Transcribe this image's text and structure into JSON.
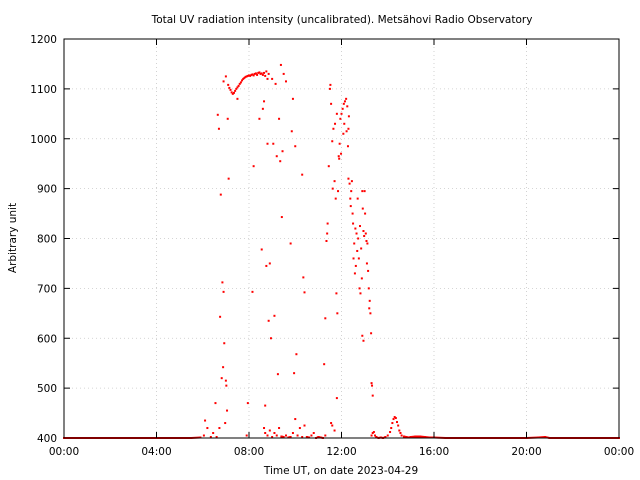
{
  "chart_data": {
    "type": "scatter",
    "title": "Total UV radiation intensity (uncalibrated). Metsähovi Radio Observatory",
    "xlabel": "Time UT, on date 2023-04-29",
    "ylabel": "Arbitrary unit",
    "xlim": [
      0,
      24
    ],
    "ylim": [
      400,
      1200
    ],
    "x_ticks": [
      {
        "value": 0,
        "label": "00:00"
      },
      {
        "value": 4,
        "label": "04:00"
      },
      {
        "value": 8,
        "label": "08:00"
      },
      {
        "value": 12,
        "label": "12:00"
      },
      {
        "value": 16,
        "label": "16:00"
      },
      {
        "value": 20,
        "label": "20:00"
      },
      {
        "value": 24,
        "label": "00:00"
      }
    ],
    "y_ticks": [
      400,
      500,
      600,
      700,
      800,
      900,
      1000,
      1100,
      1200
    ],
    "grid": true,
    "marker_color": "#ff0000",
    "series": [
      {
        "points": [
          [
            0.0,
            400
          ],
          [
            0.5,
            400
          ],
          [
            1.0,
            400
          ],
          [
            1.5,
            400
          ],
          [
            2.0,
            400
          ],
          [
            2.5,
            400
          ],
          [
            3.0,
            400
          ],
          [
            3.5,
            400
          ],
          [
            4.0,
            400
          ],
          [
            4.5,
            400
          ],
          [
            5.0,
            400
          ],
          [
            5.5,
            400
          ],
          [
            5.9,
            401
          ],
          [
            6.05,
            405
          ],
          [
            6.1,
            435
          ],
          [
            6.2,
            420
          ],
          [
            6.35,
            402
          ],
          [
            6.45,
            410
          ],
          [
            6.55,
            470
          ],
          [
            6.6,
            402
          ],
          [
            6.65,
            1048
          ],
          [
            6.7,
            1020
          ],
          [
            6.72,
            420
          ],
          [
            6.78,
            888
          ],
          [
            6.82,
            520
          ],
          [
            6.85,
            712
          ],
          [
            6.88,
            542
          ],
          [
            6.9,
            693
          ],
          [
            6.93,
            590
          ],
          [
            6.97,
            430
          ],
          [
            7.0,
            515
          ],
          [
            7.02,
            505
          ],
          [
            7.05,
            455
          ],
          [
            7.08,
            1040
          ],
          [
            7.12,
            920
          ],
          [
            6.75,
            643
          ],
          [
            6.9,
            1115
          ],
          [
            7.0,
            1125
          ],
          [
            7.1,
            1108
          ],
          [
            7.15,
            1102
          ],
          [
            7.2,
            1098
          ],
          [
            7.25,
            1093
          ],
          [
            7.3,
            1090
          ],
          [
            7.35,
            1092
          ],
          [
            7.4,
            1096
          ],
          [
            7.45,
            1100
          ],
          [
            7.5,
            1103
          ],
          [
            7.55,
            1106
          ],
          [
            7.6,
            1110
          ],
          [
            7.65,
            1113
          ],
          [
            7.7,
            1117
          ],
          [
            7.75,
            1120
          ],
          [
            7.8,
            1122
          ],
          [
            7.85,
            1124
          ],
          [
            7.9,
            1125
          ],
          [
            7.95,
            1126
          ],
          [
            8.0,
            1127
          ],
          [
            8.05,
            1126
          ],
          [
            8.1,
            1128
          ],
          [
            8.15,
            1129
          ],
          [
            8.2,
            1127
          ],
          [
            8.25,
            1130
          ],
          [
            8.3,
            1131
          ],
          [
            8.35,
            1128
          ],
          [
            8.4,
            1132
          ],
          [
            8.45,
            1133
          ],
          [
            8.5,
            1130
          ],
          [
            8.55,
            1131
          ],
          [
            8.6,
            1128
          ],
          [
            8.65,
            1132
          ],
          [
            8.7,
            1126
          ],
          [
            8.75,
            1135
          ],
          [
            8.8,
            1120
          ],
          [
            8.85,
            1130
          ],
          [
            7.5,
            1080
          ],
          [
            7.9,
            405
          ],
          [
            7.95,
            470
          ],
          [
            8.15,
            693
          ],
          [
            8.2,
            945
          ],
          [
            8.45,
            1040
          ],
          [
            8.55,
            778
          ],
          [
            8.6,
            1060
          ],
          [
            8.65,
            1075
          ],
          [
            8.7,
            465
          ],
          [
            8.75,
            745
          ],
          [
            8.8,
            990
          ],
          [
            8.85,
            635
          ],
          [
            8.9,
            750
          ],
          [
            8.95,
            600
          ],
          [
            9.0,
            1120
          ],
          [
            9.05,
            990
          ],
          [
            9.1,
            645
          ],
          [
            9.15,
            1110
          ],
          [
            9.2,
            965
          ],
          [
            9.25,
            528
          ],
          [
            9.3,
            1040
          ],
          [
            9.35,
            955
          ],
          [
            9.38,
            1148
          ],
          [
            9.42,
            843
          ],
          [
            9.45,
            975
          ],
          [
            9.5,
            1130
          ],
          [
            9.6,
            1115
          ],
          [
            9.8,
            790
          ],
          [
            9.85,
            1015
          ],
          [
            9.9,
            1080
          ],
          [
            9.95,
            530
          ],
          [
            10.0,
            985
          ],
          [
            10.05,
            568
          ],
          [
            10.3,
            928
          ],
          [
            10.35,
            722
          ],
          [
            10.4,
            692
          ],
          [
            8.65,
            420
          ],
          [
            8.7,
            410
          ],
          [
            8.8,
            405
          ],
          [
            8.9,
            415
          ],
          [
            9.0,
            402
          ],
          [
            9.1,
            410
          ],
          [
            9.2,
            405
          ],
          [
            9.3,
            420
          ],
          [
            9.4,
            403
          ],
          [
            9.5,
            402
          ],
          [
            9.6,
            405
          ],
          [
            9.7,
            401
          ],
          [
            9.8,
            402
          ],
          [
            9.9,
            410
          ],
          [
            10.0,
            438
          ],
          [
            10.1,
            405
          ],
          [
            10.2,
            420
          ],
          [
            10.3,
            402
          ],
          [
            10.4,
            425
          ],
          [
            10.5,
            402
          ],
          [
            10.6,
            401
          ],
          [
            10.7,
            405
          ],
          [
            10.8,
            410
          ],
          [
            10.9,
            400
          ],
          [
            11.0,
            402
          ],
          [
            11.1,
            401
          ],
          [
            11.2,
            400
          ],
          [
            11.3,
            405
          ],
          [
            11.25,
            548
          ],
          [
            11.3,
            640
          ],
          [
            11.35,
            795
          ],
          [
            11.38,
            810
          ],
          [
            11.4,
            830
          ],
          [
            11.45,
            945
          ],
          [
            11.5,
            1100
          ],
          [
            11.52,
            1108
          ],
          [
            11.55,
            1070
          ],
          [
            11.6,
            995
          ],
          [
            11.62,
            900
          ],
          [
            11.65,
            1020
          ],
          [
            11.7,
            915
          ],
          [
            11.72,
            1030
          ],
          [
            11.75,
            880
          ],
          [
            11.78,
            690
          ],
          [
            11.8,
            1050
          ],
          [
            11.82,
            650
          ],
          [
            11.85,
            895
          ],
          [
            11.88,
            965
          ],
          [
            11.9,
            960
          ],
          [
            11.92,
            990
          ],
          [
            11.95,
            1040
          ],
          [
            11.98,
            970
          ],
          [
            12.0,
            1050
          ],
          [
            12.05,
            1060
          ],
          [
            12.08,
            1010
          ],
          [
            12.1,
            1070
          ],
          [
            12.12,
            1030
          ],
          [
            12.15,
            1075
          ],
          [
            12.2,
            1080
          ],
          [
            12.22,
            1015
          ],
          [
            12.25,
            1065
          ],
          [
            12.28,
            985
          ],
          [
            12.3,
            1020
          ],
          [
            12.32,
            1045
          ],
          [
            11.55,
            430
          ],
          [
            11.6,
            425
          ],
          [
            11.7,
            415
          ],
          [
            11.8,
            480
          ],
          [
            12.3,
            920
          ],
          [
            12.35,
            910
          ],
          [
            12.38,
            880
          ],
          [
            12.4,
            865
          ],
          [
            12.42,
            895
          ],
          [
            12.45,
            915
          ],
          [
            12.48,
            850
          ],
          [
            12.5,
            830
          ],
          [
            12.52,
            760
          ],
          [
            12.55,
            790
          ],
          [
            12.58,
            730
          ],
          [
            12.6,
            820
          ],
          [
            12.62,
            745
          ],
          [
            12.65,
            810
          ],
          [
            12.68,
            775
          ],
          [
            12.7,
            880
          ],
          [
            12.72,
            800
          ],
          [
            12.75,
            760
          ],
          [
            12.78,
            700
          ],
          [
            12.8,
            825
          ],
          [
            12.82,
            690
          ],
          [
            12.85,
            780
          ],
          [
            12.88,
            720
          ],
          [
            12.9,
            895
          ],
          [
            12.92,
            860
          ],
          [
            12.95,
            815
          ],
          [
            12.98,
            805
          ],
          [
            13.0,
            895
          ],
          [
            13.02,
            850
          ],
          [
            13.05,
            810
          ],
          [
            13.08,
            795
          ],
          [
            13.1,
            750
          ],
          [
            13.12,
            790
          ],
          [
            13.15,
            735
          ],
          [
            13.18,
            700
          ],
          [
            13.2,
            660
          ],
          [
            13.22,
            675
          ],
          [
            13.25,
            650
          ],
          [
            13.28,
            610
          ],
          [
            13.3,
            510
          ],
          [
            13.32,
            505
          ],
          [
            13.35,
            485
          ],
          [
            12.9,
            605
          ],
          [
            12.95,
            595
          ],
          [
            13.3,
            405
          ],
          [
            13.35,
            410
          ],
          [
            13.4,
            412
          ],
          [
            13.45,
            405
          ],
          [
            13.5,
            402
          ],
          [
            13.6,
            400
          ],
          [
            13.7,
            401
          ],
          [
            13.8,
            400
          ],
          [
            13.9,
            402
          ],
          [
            14.0,
            405
          ],
          [
            14.1,
            412
          ],
          [
            14.15,
            420
          ],
          [
            14.2,
            430
          ],
          [
            14.25,
            438
          ],
          [
            14.3,
            442
          ],
          [
            14.35,
            440
          ],
          [
            14.4,
            432
          ],
          [
            14.45,
            425
          ],
          [
            14.5,
            415
          ],
          [
            14.55,
            410
          ],
          [
            14.6,
            405
          ],
          [
            14.7,
            403
          ],
          [
            14.8,
            402
          ],
          [
            14.9,
            401
          ],
          [
            15.0,
            402
          ],
          [
            15.2,
            403
          ],
          [
            15.4,
            403
          ],
          [
            15.6,
            402
          ],
          [
            15.8,
            401
          ],
          [
            16.0,
            401
          ],
          [
            16.5,
            400
          ],
          [
            17.0,
            400
          ],
          [
            17.5,
            400
          ],
          [
            18.0,
            400
          ],
          [
            18.5,
            400
          ],
          [
            19.0,
            400
          ],
          [
            19.5,
            400
          ],
          [
            20.0,
            400
          ],
          [
            20.5,
            401
          ],
          [
            20.8,
            402
          ],
          [
            21.0,
            400
          ],
          [
            21.5,
            400
          ],
          [
            22.0,
            400
          ],
          [
            22.5,
            400
          ],
          [
            23.0,
            400
          ],
          [
            23.5,
            400
          ],
          [
            24.0,
            400
          ]
        ]
      }
    ]
  }
}
